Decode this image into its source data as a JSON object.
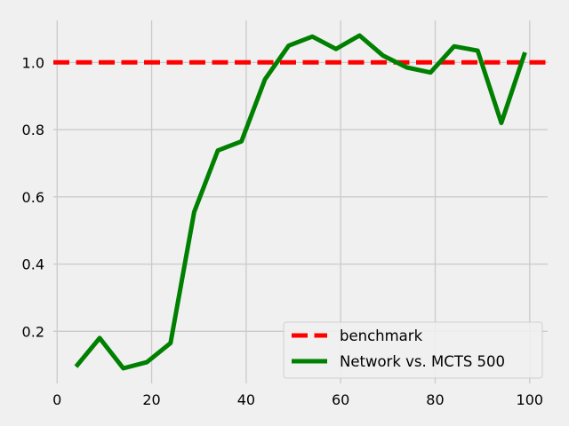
{
  "chart_data": {
    "type": "line",
    "title": "",
    "xlabel": "",
    "ylabel": "",
    "xlim": [
      -0.8,
      103.8
    ],
    "ylim": [
      0.045,
      1.125
    ],
    "grid": true,
    "legend_position": "lower-right",
    "x_ticks": [
      0,
      20,
      40,
      60,
      80,
      100
    ],
    "y_ticks": [
      0.2,
      0.4,
      0.6,
      0.8,
      1.0
    ],
    "x_tick_labels": [
      "0",
      "20",
      "40",
      "60",
      "80",
      "100"
    ],
    "y_tick_labels": [
      "0.2",
      "0.4",
      "0.6",
      "0.8",
      "1.0"
    ],
    "series": [
      {
        "name": "benchmark",
        "style": "dashed",
        "color": "#ff0000",
        "x": [
          -0.8,
          103.8
        ],
        "y": [
          1.0,
          1.0
        ]
      },
      {
        "name": "Network vs. MCTS 500",
        "style": "solid",
        "color": "#008000",
        "x": [
          4,
          9,
          14,
          19,
          24,
          29,
          34,
          39,
          44,
          49,
          54,
          59,
          64,
          69,
          74,
          79,
          84,
          89,
          94,
          99
        ],
        "y": [
          0.095,
          0.18,
          0.09,
          0.108,
          0.165,
          0.555,
          0.738,
          0.765,
          0.95,
          1.05,
          1.077,
          1.04,
          1.08,
          1.02,
          0.985,
          0.97,
          1.048,
          1.035,
          0.82,
          1.03
        ]
      }
    ]
  }
}
